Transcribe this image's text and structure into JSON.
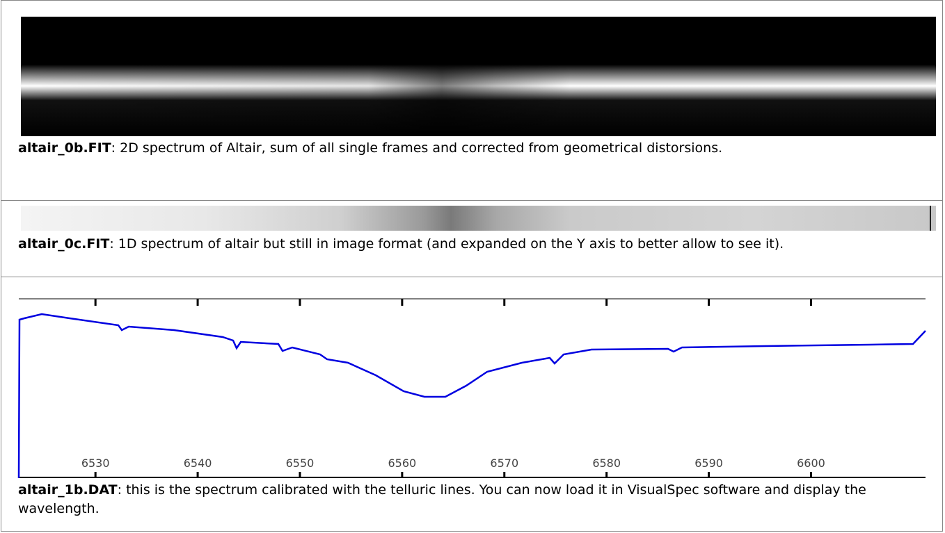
{
  "rows": [
    {
      "file": "altair_0b.FIT",
      "text": ": 2D spectrum of Altair, sum of all single frames and corrected from geometrical distorsions."
    },
    {
      "file": "altair_0c.FIT",
      "text": ": 1D spectrum of altair but still in image format (and expanded on the Y axis to better allow to see it)."
    },
    {
      "file": "altair_1b.DAT",
      "text": ": this is the spectrum calibrated with the telluric lines. You can now load it in VisualSpec software and display the wavelength."
    }
  ],
  "chart_data": {
    "type": "line",
    "xlim": [
      6522.5,
      6611.2
    ],
    "xticks": [
      6530,
      6540,
      6550,
      6560,
      6570,
      6580,
      6590,
      6600
    ]
  }
}
